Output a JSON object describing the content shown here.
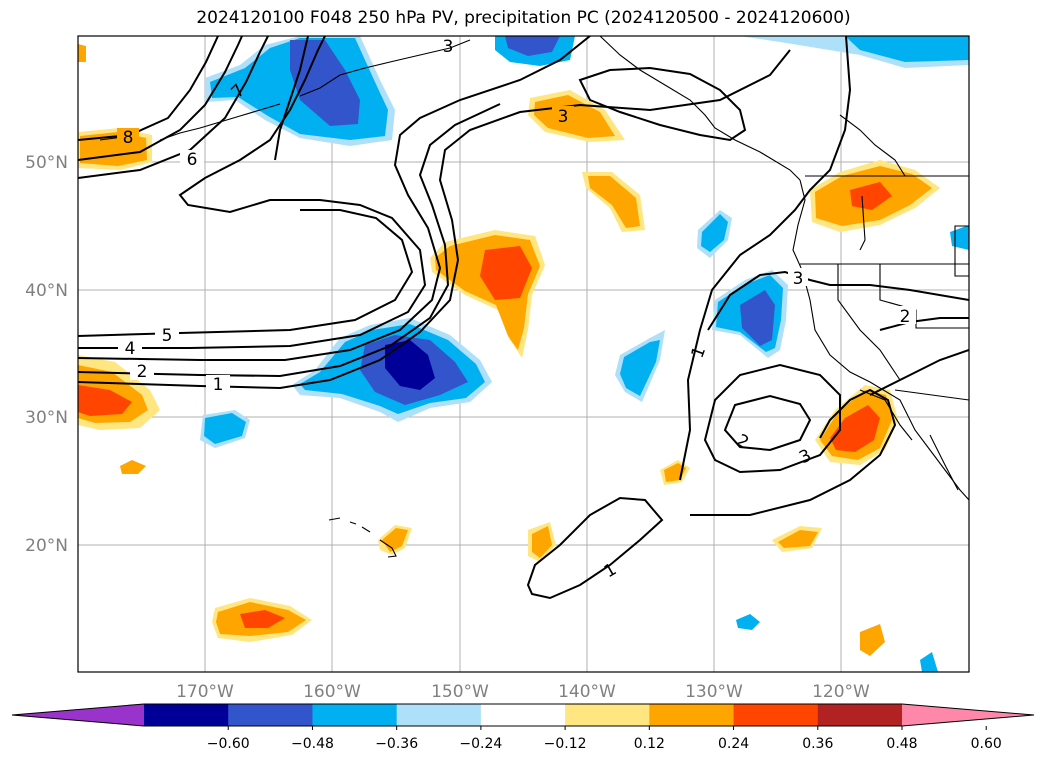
{
  "title": "2024120100 F048 250 hPa PV, precipitation PC (2024120500 - 2024120600)",
  "lat_labels": [
    "50°N",
    "40°N",
    "30°N",
    "20°N"
  ],
  "lon_labels": [
    "170°W",
    "160°W",
    "150°W",
    "140°W",
    "130°W",
    "120°W"
  ],
  "colorbar": {
    "ticks": [
      "−0.60",
      "−0.48",
      "−0.36",
      "−0.24",
      "−0.12",
      "0.12",
      "0.24",
      "0.36",
      "0.48",
      "0.60"
    ],
    "colors": [
      "#9933cc",
      "#000099",
      "#3355cc",
      "#00b0f0",
      "#aee0fa",
      "#ffffff",
      "#ffe680",
      "#ffa500",
      "#ff4500",
      "#b22222",
      "#ff88aa"
    ]
  },
  "contour_labels": {
    "c1a": "1",
    "c2a": "2",
    "c4a": "4",
    "c5a": "5",
    "c6a": "6",
    "c8a": "8",
    "c7a": "7",
    "c3a": "3",
    "c3b": "3",
    "c3c": "3",
    "c2b": "2",
    "c1b": "1",
    "c2c": "2",
    "c3d": "3",
    "c1c": "1"
  }
}
